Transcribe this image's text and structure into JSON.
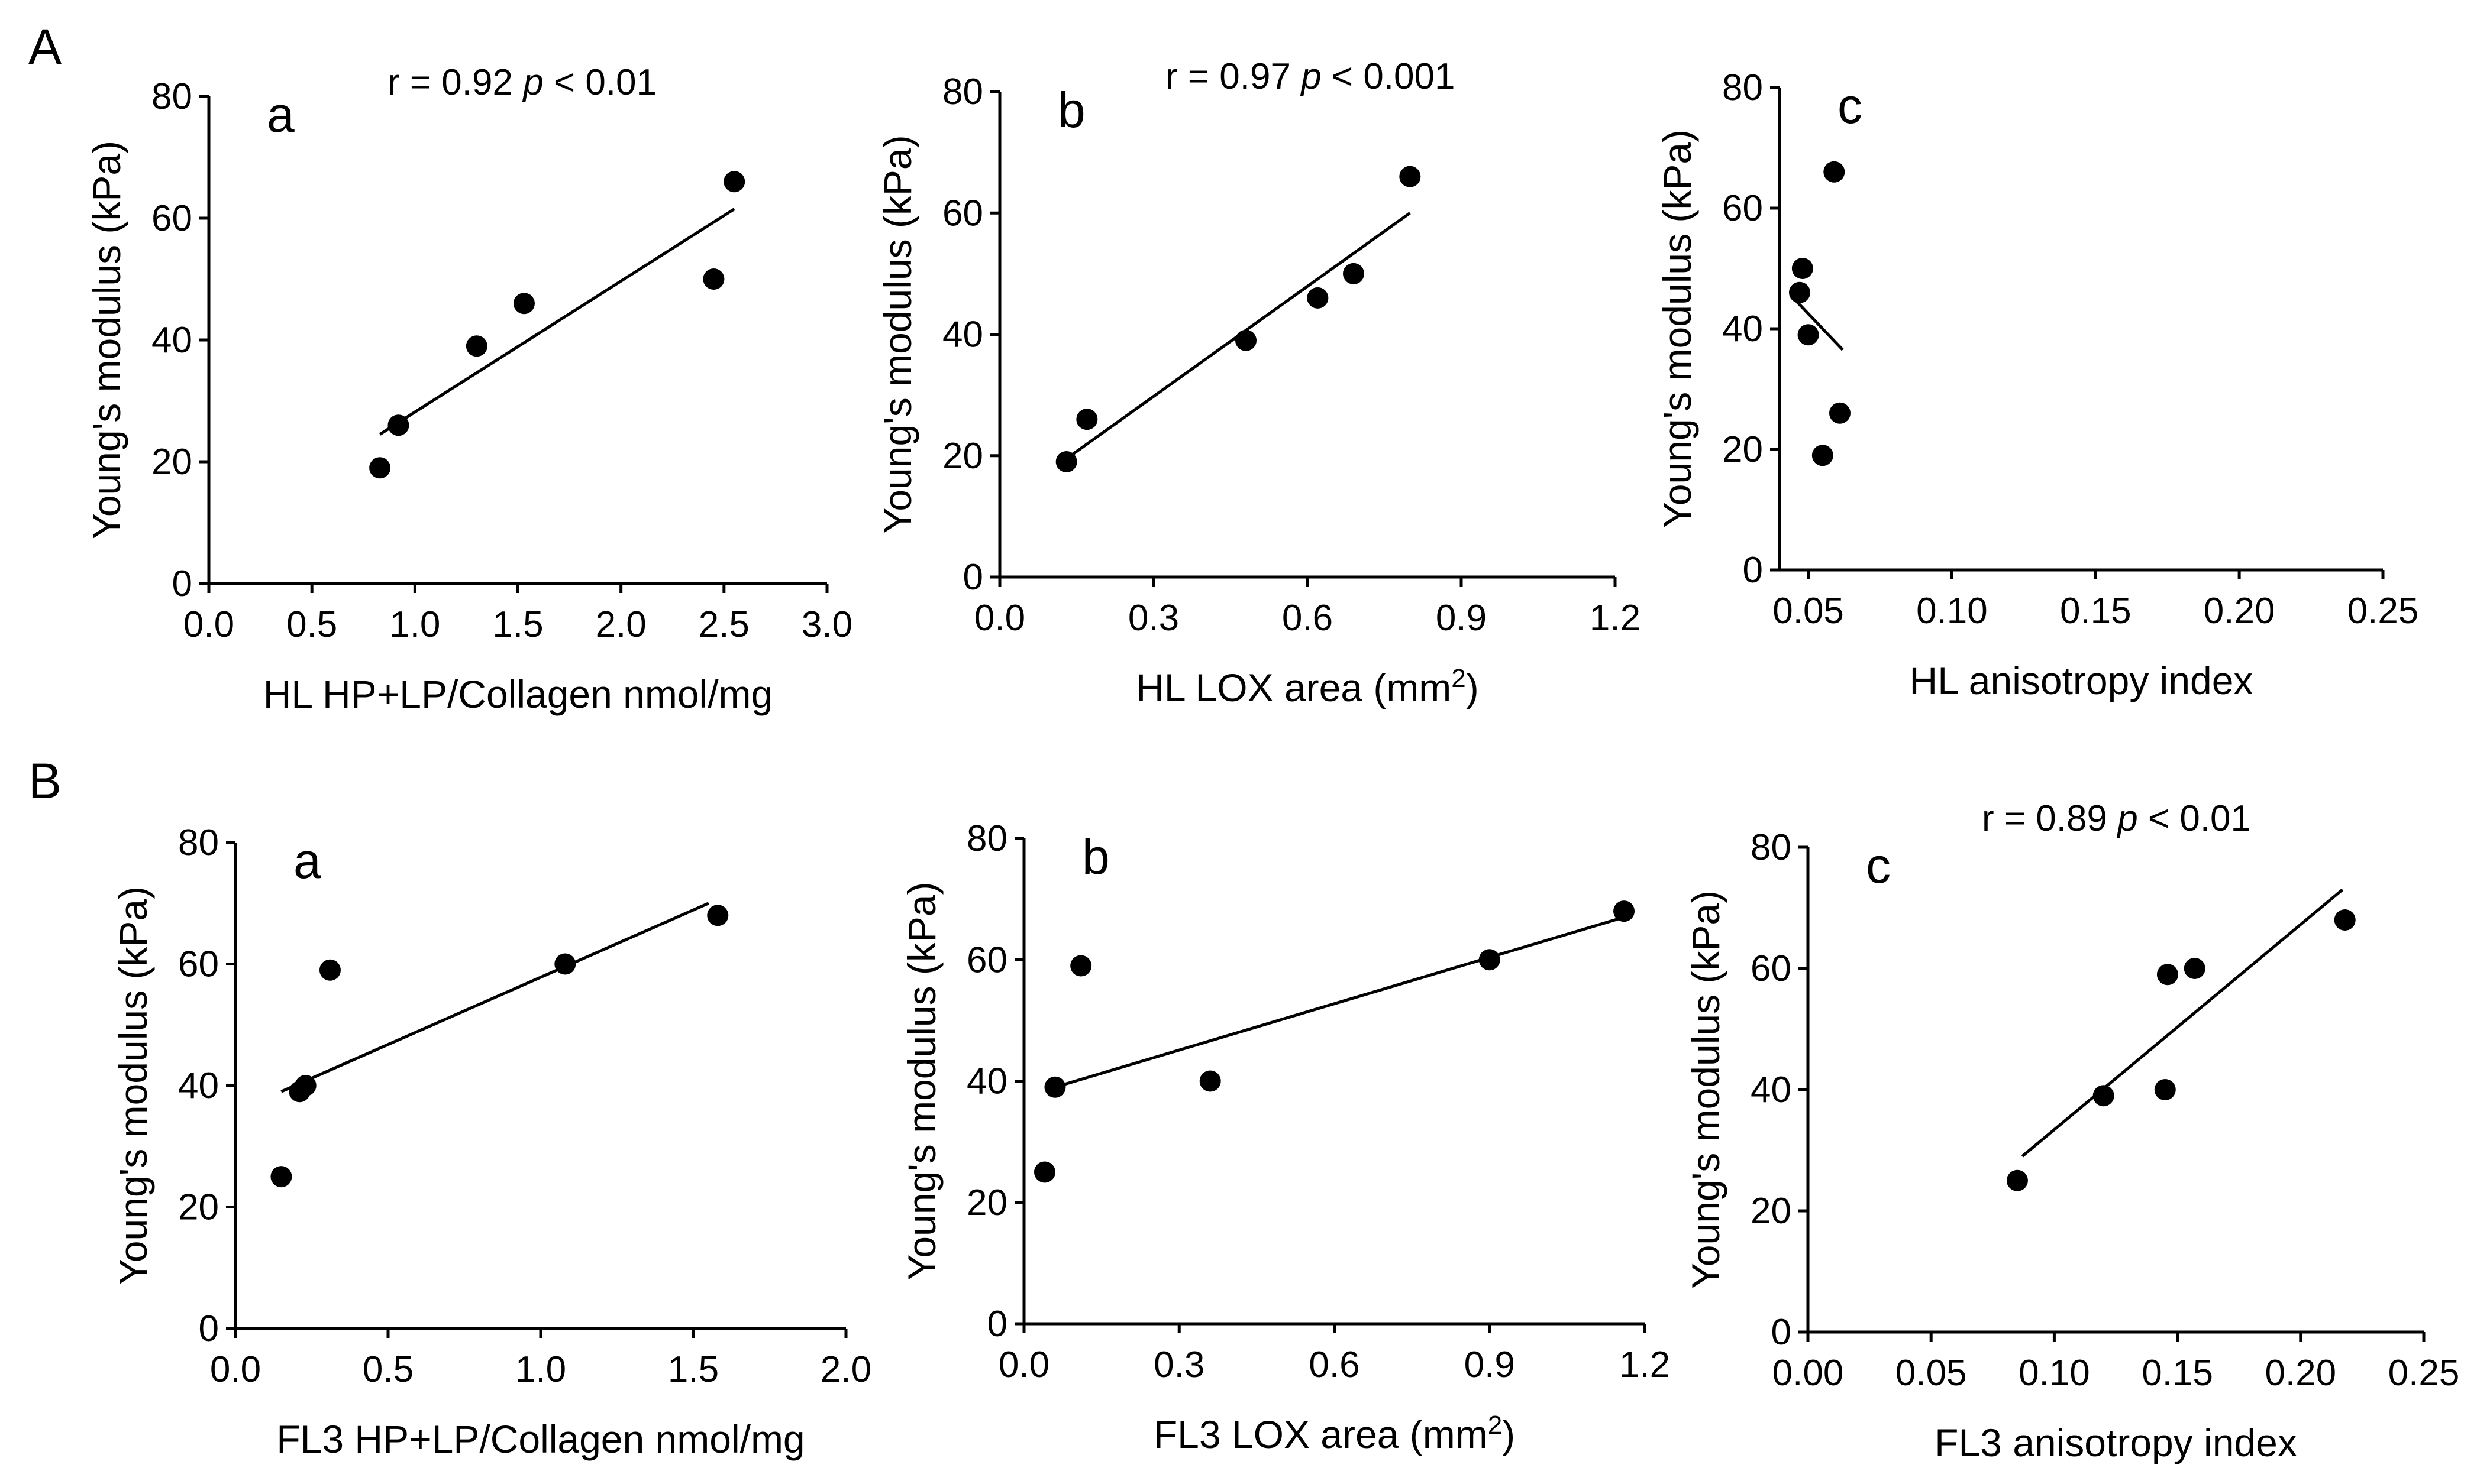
{
  "figure": {
    "section_labels": [
      "A",
      "B"
    ]
  },
  "chart_data": [
    {
      "type": "scatter",
      "panel": "a",
      "xlabel": "HL HP+LP/Collagen nmol/mg",
      "xlabel_sup": "",
      "xlabel_suffix": "",
      "ylabel": "Young's modulus (kPa)",
      "xlim": [
        0,
        3.0
      ],
      "ylim": [
        0,
        80
      ],
      "xticks": [
        "0.0",
        "0.5",
        "1.0",
        "1.5",
        "2.0",
        "2.5",
        "3.0"
      ],
      "yticks": [
        "0",
        "20",
        "40",
        "60",
        "80"
      ],
      "points": [
        [
          0.83,
          19
        ],
        [
          0.92,
          26
        ],
        [
          1.3,
          39
        ],
        [
          1.53,
          46
        ],
        [
          2.45,
          50
        ],
        [
          2.55,
          66
        ]
      ],
      "fit": [
        [
          0.83,
          24.5
        ],
        [
          2.55,
          61.5
        ]
      ],
      "annotation": {
        "r_text": "r = 0.92",
        "p_symbol": "p",
        "p_text": "< 0.01"
      }
    },
    {
      "type": "scatter",
      "panel": "b",
      "xlabel": "HL LOX area (mm",
      "xlabel_sup": "2",
      "xlabel_suffix": ")",
      "ylabel": "Young's modulus (kPa)",
      "xlim": [
        0,
        1.2
      ],
      "ylim": [
        0,
        80
      ],
      "xticks": [
        "0.0",
        "0.3",
        "0.6",
        "0.9",
        "1.2"
      ],
      "yticks": [
        "0",
        "20",
        "40",
        "60",
        "80"
      ],
      "points": [
        [
          0.13,
          19
        ],
        [
          0.17,
          26
        ],
        [
          0.48,
          39
        ],
        [
          0.62,
          46
        ],
        [
          0.69,
          50
        ],
        [
          0.8,
          66
        ]
      ],
      "fit": [
        [
          0.13,
          19.5
        ],
        [
          0.8,
          60
        ]
      ],
      "annotation": {
        "r_text": "r = 0.97",
        "p_symbol": "p",
        "p_text": "< 0.001"
      }
    },
    {
      "type": "scatter",
      "panel": "c",
      "xlabel": "HL anisotropy index",
      "xlabel_sup": "",
      "xlabel_suffix": "",
      "ylabel": "Young's modulus (kPa)",
      "xlim": [
        0.04,
        0.25
      ],
      "ylim": [
        0,
        80
      ],
      "xticks": [
        "0.05",
        "0.10",
        "0.15",
        "0.20",
        "0.25"
      ],
      "yticks": [
        "0",
        "20",
        "40",
        "60",
        "80"
      ],
      "points": [
        [
          0.047,
          46
        ],
        [
          0.048,
          50
        ],
        [
          0.05,
          39
        ],
        [
          0.055,
          19
        ],
        [
          0.059,
          66
        ],
        [
          0.061,
          26
        ]
      ],
      "fit": [
        [
          0.046,
          44.5
        ],
        [
          0.062,
          36.5
        ]
      ],
      "annotation": null
    },
    {
      "type": "scatter",
      "panel": "a",
      "xlabel": "FL3 HP+LP/Collagen nmol/mg",
      "xlabel_sup": "",
      "xlabel_suffix": "",
      "ylabel": "Young's modulus (kPa)",
      "xlim": [
        0,
        2.0
      ],
      "ylim": [
        0,
        80
      ],
      "xticks": [
        "0.0",
        "0.5",
        "1.0",
        "1.5",
        "2.0"
      ],
      "yticks": [
        "0",
        "20",
        "40",
        "60",
        "80"
      ],
      "points": [
        [
          0.15,
          25
        ],
        [
          0.21,
          39
        ],
        [
          0.23,
          40
        ],
        [
          0.31,
          59
        ],
        [
          1.08,
          60
        ],
        [
          1.58,
          68
        ]
      ],
      "fit": [
        [
          0.15,
          39
        ],
        [
          1.55,
          70
        ]
      ],
      "annotation": null
    },
    {
      "type": "scatter",
      "panel": "b",
      "xlabel": "FL3 LOX area (mm",
      "xlabel_sup": "2",
      "xlabel_suffix": ")",
      "ylabel": "Young's modulus (kPa)",
      "xlim": [
        0,
        1.2
      ],
      "ylim": [
        0,
        80
      ],
      "xticks": [
        "0.0",
        "0.3",
        "0.6",
        "0.9",
        "1.2"
      ],
      "yticks": [
        "0",
        "20",
        "40",
        "60",
        "80"
      ],
      "points": [
        [
          0.04,
          25
        ],
        [
          0.06,
          39
        ],
        [
          0.11,
          59
        ],
        [
          0.36,
          40
        ],
        [
          0.9,
          60
        ],
        [
          1.16,
          68
        ]
      ],
      "fit": [
        [
          0.06,
          39
        ],
        [
          1.16,
          67
        ]
      ],
      "annotation": null
    },
    {
      "type": "scatter",
      "panel": "c",
      "xlabel": "FL3 anisotropy index",
      "xlabel_sup": "",
      "xlabel_suffix": "",
      "ylabel": "Young's modulus (kPa)",
      "xlim": [
        0,
        0.25
      ],
      "ylim": [
        0,
        80
      ],
      "xticks": [
        "0.00",
        "0.05",
        "0.10",
        "0.15",
        "0.20",
        "0.25"
      ],
      "yticks": [
        "0",
        "20",
        "40",
        "60",
        "80"
      ],
      "points": [
        [
          0.085,
          25
        ],
        [
          0.12,
          39
        ],
        [
          0.145,
          40
        ],
        [
          0.146,
          59
        ],
        [
          0.157,
          60
        ],
        [
          0.218,
          68
        ]
      ],
      "fit": [
        [
          0.087,
          29
        ],
        [
          0.217,
          73
        ]
      ],
      "annotation": {
        "r_text": "r = 0.89",
        "p_symbol": "p",
        "p_text": "< 0.01"
      }
    }
  ]
}
